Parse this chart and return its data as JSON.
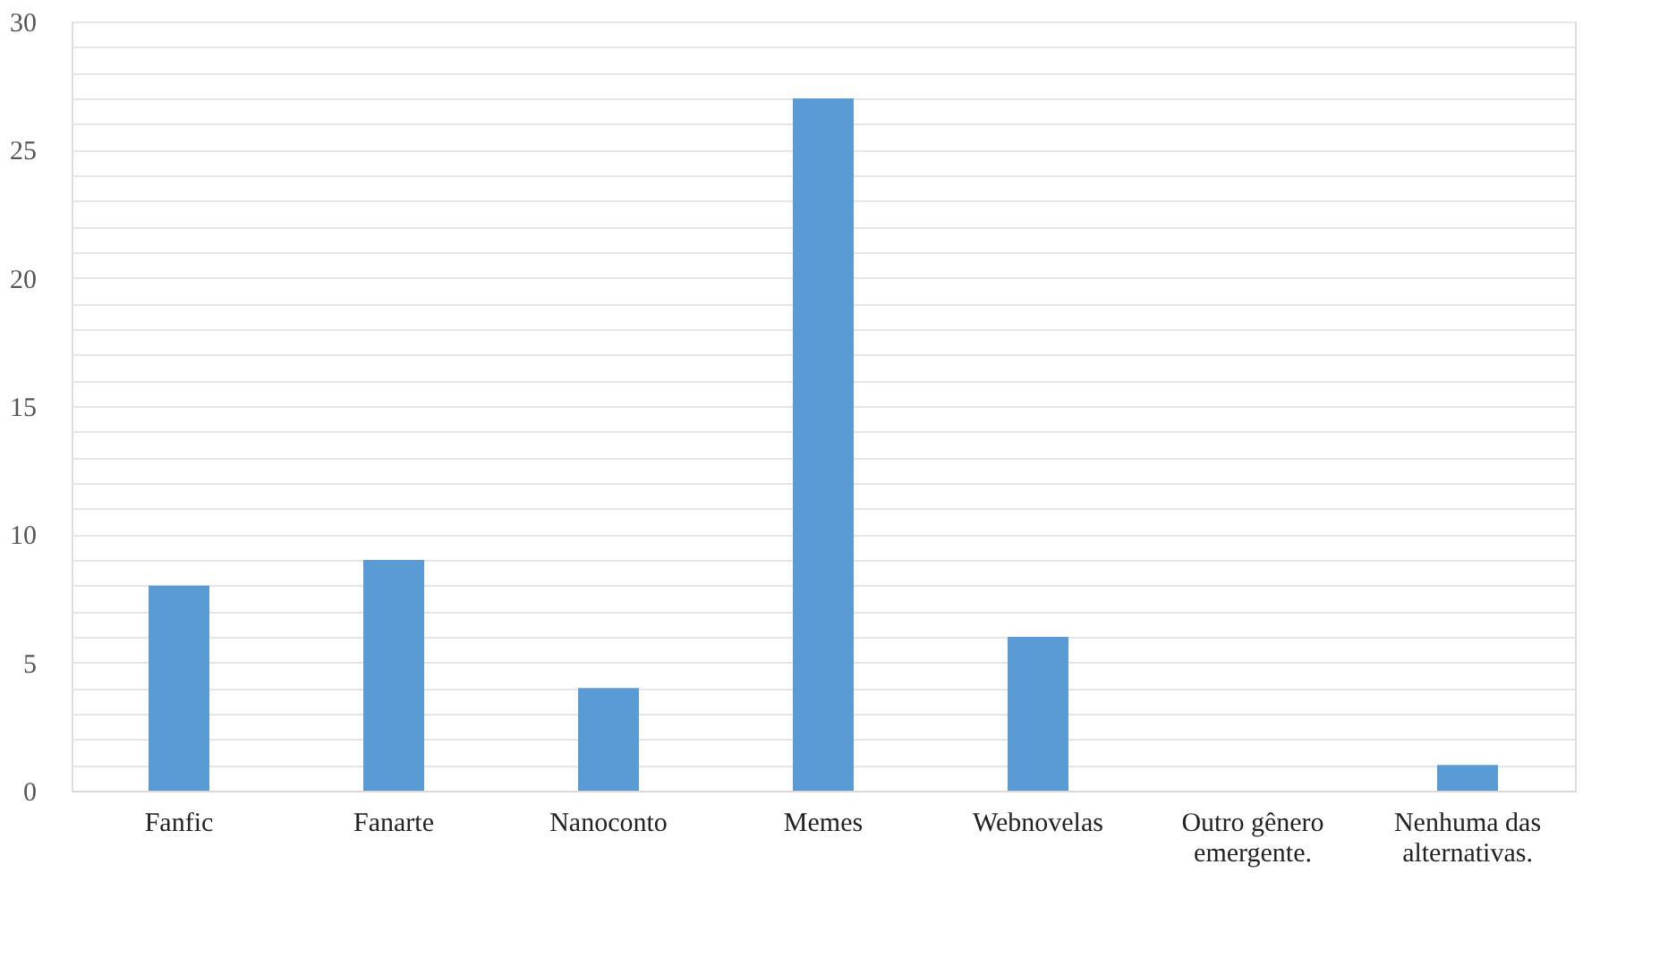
{
  "chart_data": {
    "type": "bar",
    "categories": [
      "Fanfic",
      "Fanarte",
      "Nanoconto",
      "Memes",
      "Webnovelas",
      "Outro gênero emergente.",
      "Nenhuma das alternativas."
    ],
    "values": [
      8,
      9,
      4,
      27,
      6,
      0,
      1
    ],
    "color": "#5b9bd5",
    "ylim": [
      0,
      30
    ],
    "yticks": [
      0,
      {
        "value": 1,
        "label": null
      },
      {
        "value": 2,
        "label": null
      },
      {
        "value": 3,
        "label": null
      },
      {
        "value": 4,
        "label": null
      },
      5,
      {
        "value": 6,
        "label": null
      },
      {
        "value": 7,
        "label": null
      },
      {
        "value": 8,
        "label": null
      },
      {
        "value": 9,
        "label": null
      },
      10,
      {
        "value": 11,
        "label": null
      },
      {
        "value": 12,
        "label": null
      },
      {
        "value": 13,
        "label": null
      },
      {
        "value": 14,
        "label": null
      },
      15,
      {
        "value": 16,
        "label": null
      },
      {
        "value": 17,
        "label": null
      },
      {
        "value": 18,
        "label": null
      },
      {
        "value": 19,
        "label": null
      },
      20,
      {
        "value": 21,
        "label": null
      },
      {
        "value": 22,
        "label": null
      },
      {
        "value": 23,
        "label": null
      },
      {
        "value": 24,
        "label": null
      },
      25,
      {
        "value": 26,
        "label": null
      },
      {
        "value": 27,
        "label": null
      },
      {
        "value": 28,
        "label": null
      },
      {
        "value": 29,
        "label": null
      },
      30
    ],
    "grid": true
  }
}
